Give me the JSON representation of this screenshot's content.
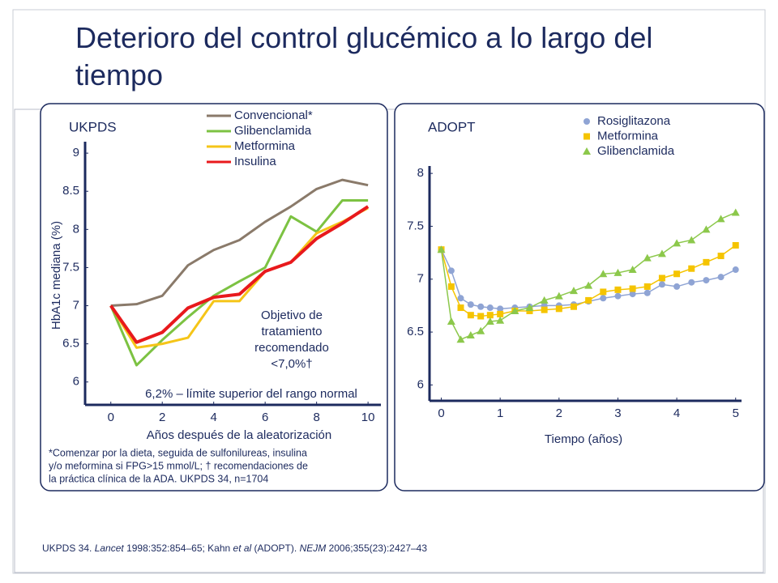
{
  "title": "Deterioro del control glucémico a lo largo del tiempo",
  "reference": [
    "UKPDS 34. ",
    "Lancet",
    " 1998:352:854–65; Kahn ",
    "et al",
    " (ADOPT). ",
    "NEJM",
    " 2006;355(23):2427–43"
  ],
  "chart_data": [
    {
      "type": "line",
      "title": "UKPDS",
      "xlabel": "Años después de la aleatorización",
      "ylabel": "HbA1c mediana (%)",
      "x": [
        0,
        1,
        2,
        3,
        4,
        5,
        6,
        7,
        8,
        9,
        10
      ],
      "series": [
        {
          "name": "Convencional*",
          "color": "#8a7a6a",
          "values": [
            7.0,
            7.02,
            7.13,
            7.53,
            7.73,
            7.86,
            8.1,
            8.3,
            8.53,
            8.65,
            8.58
          ]
        },
        {
          "name": "Glibenclamida",
          "color": "#7cc242",
          "values": [
            7.0,
            6.22,
            6.55,
            6.85,
            7.13,
            7.32,
            7.5,
            8.17,
            7.97,
            8.38,
            8.38
          ]
        },
        {
          "name": "Metformina",
          "color": "#f5c518",
          "values": [
            7.0,
            6.45,
            6.5,
            6.58,
            7.06,
            7.06,
            7.45,
            7.57,
            7.95,
            8.1,
            8.28
          ]
        },
        {
          "name": "Insulina",
          "color": "#e8191c",
          "values": [
            7.0,
            6.52,
            6.65,
            6.97,
            7.11,
            7.15,
            7.45,
            7.57,
            7.88,
            8.08,
            8.3
          ]
        }
      ],
      "xlim": [
        -1,
        10.5
      ],
      "xticks": [
        0,
        2,
        4,
        6,
        8,
        10
      ],
      "ylim": [
        5.7,
        9.15
      ],
      "yticks": [
        6,
        6.5,
        7,
        7.5,
        8,
        8.5,
        9
      ],
      "grid": false,
      "annotations": [
        "Objetivo de",
        "tratamiento",
        "recomendado",
        "<7,0%†",
        "6,2% – límite superior del rango normal"
      ],
      "note": [
        "*Comenzar por la dieta, seguida de sulfonilureas, insulina",
        "y/o meformina si FPG>15 mmol/L; † recomendaciones de",
        "la práctica clínica de la ADA. UKPDS 34, n=1704"
      ]
    },
    {
      "type": "line",
      "title": "ADOPT",
      "xlabel": "Tiempo (años)",
      "x": [
        0,
        0.17,
        0.33,
        0.5,
        0.67,
        0.83,
        1,
        1.25,
        1.5,
        1.75,
        2,
        2.25,
        2.5,
        2.75,
        3,
        3.25,
        3.5,
        3.75,
        4,
        4.25,
        4.5,
        4.75,
        5
      ],
      "series": [
        {
          "name": "Rosiglitazona",
          "color": "#8fa4d4",
          "marker": "circle",
          "values": [
            7.28,
            7.08,
            6.82,
            6.76,
            6.74,
            6.73,
            6.72,
            6.73,
            6.74,
            6.75,
            6.75,
            6.76,
            6.79,
            6.82,
            6.84,
            6.86,
            6.87,
            6.95,
            6.93,
            6.97,
            6.99,
            7.02,
            7.09
          ]
        },
        {
          "name": "Metformina",
          "color": "#f5c400",
          "marker": "square",
          "values": [
            7.28,
            6.93,
            6.73,
            6.66,
            6.65,
            6.66,
            6.67,
            6.7,
            6.7,
            6.71,
            6.72,
            6.74,
            6.8,
            6.88,
            6.9,
            6.91,
            6.93,
            7.01,
            7.05,
            7.1,
            7.16,
            7.22,
            7.32
          ]
        },
        {
          "name": "Glibenclamida",
          "color": "#8cc84b",
          "marker": "triangle",
          "values": [
            7.28,
            6.6,
            6.43,
            6.47,
            6.51,
            6.6,
            6.61,
            6.7,
            6.73,
            6.8,
            6.84,
            6.89,
            6.94,
            7.05,
            7.06,
            7.09,
            7.2,
            7.24,
            7.34,
            7.37,
            7.47,
            7.57,
            7.63
          ]
        }
      ],
      "xlim": [
        -0.2,
        5.1
      ],
      "xticks": [
        0,
        1,
        2,
        3,
        4,
        5
      ],
      "ylim": [
        5.85,
        8.07
      ],
      "yticks": [
        6,
        6.5,
        7,
        7.5,
        8
      ],
      "grid": false
    }
  ]
}
